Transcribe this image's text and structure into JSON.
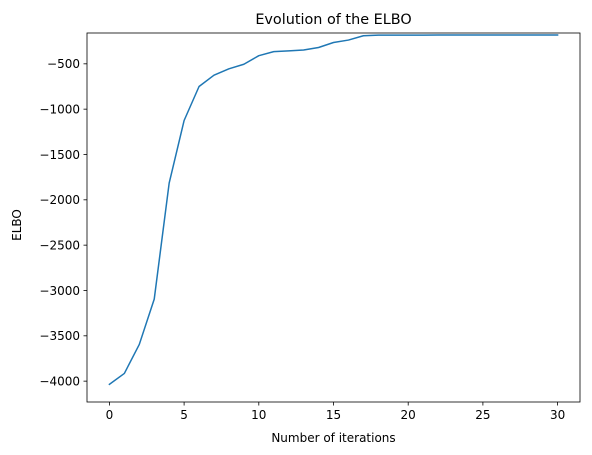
{
  "chart_data": {
    "type": "line",
    "title": "Evolution of the ELBO",
    "xlabel": "Number of iterations",
    "ylabel": "ELBO",
    "xlim": [
      -1.5,
      31.5
    ],
    "ylim": [
      -4230,
      -160
    ],
    "xticks": [
      0,
      5,
      10,
      15,
      20,
      25,
      30
    ],
    "xtick_labels": [
      "0",
      "5",
      "10",
      "15",
      "20",
      "25",
      "30"
    ],
    "yticks": [
      -4000,
      -3500,
      -3000,
      -2500,
      -2000,
      -1500,
      -1000,
      -500
    ],
    "ytick_labels": [
      "−4000",
      "−3500",
      "−3000",
      "−2500",
      "−2000",
      "−1500",
      "−1000",
      "−500"
    ],
    "grid": false,
    "series": [
      {
        "color": "#1f77b4",
        "x": [
          0,
          1,
          2,
          3,
          4,
          5,
          6,
          7,
          8,
          9,
          10,
          11,
          12,
          13,
          14,
          15,
          16,
          17,
          18,
          19,
          20,
          21,
          22,
          23,
          24,
          25,
          26,
          27,
          28,
          29,
          30
        ],
        "y": [
          -4035,
          -3915,
          -3595,
          -3095,
          -1815,
          -1125,
          -750,
          -625,
          -555,
          -505,
          -410,
          -365,
          -357,
          -348,
          -320,
          -265,
          -238,
          -190,
          -183,
          -183,
          -183,
          -183,
          -182,
          -182,
          -182,
          -182,
          -182,
          -182,
          -182,
          -182,
          -182
        ]
      }
    ]
  }
}
